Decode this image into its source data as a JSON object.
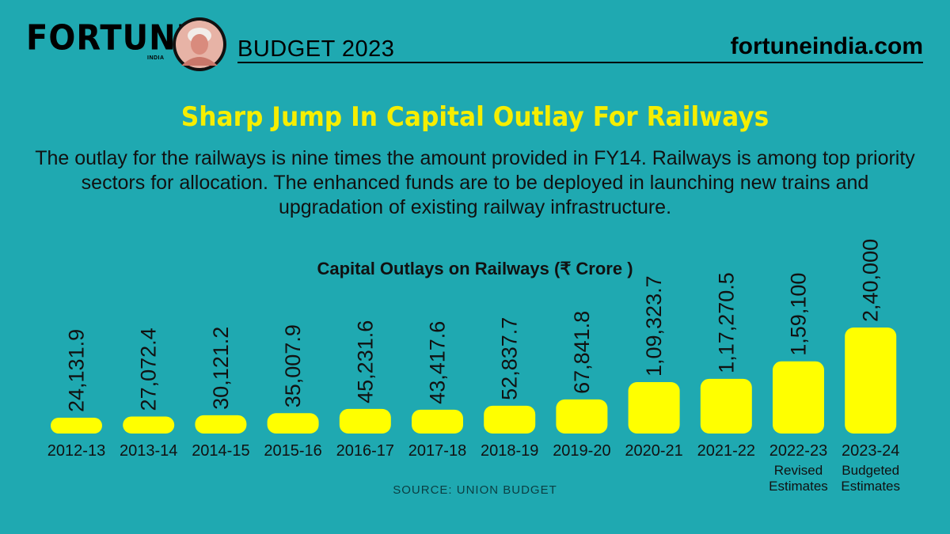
{
  "header": {
    "brand": "FORTUNE",
    "brand_sub": "INDIA",
    "section": "BUDGET 2023",
    "site": "fortuneindia.com"
  },
  "headline": "Sharp Jump In Capital Outlay For Railways",
  "description": "The outlay for the railways is nine times the amount provided in FY14. Railways is among top priority sectors for allocation. The enhanced funds are to be deployed in launching new trains and upgradation of existing railway infrastructure.",
  "source": "SOURCE: UNION BUDGET",
  "colors": {
    "background": "#1fa9b1",
    "bar": "#ffff00",
    "headline": "#f6ee00"
  },
  "chart_data": {
    "type": "bar",
    "title": "Capital Outlays on Railways (₹  Crore )",
    "xlabel": "",
    "ylabel": "",
    "categories": [
      "2012-13",
      "2013-14",
      "2014-15",
      "2015-16",
      "2016-17",
      "2017-18",
      "2018-19",
      "2019-20",
      "2020-21",
      "2021-22",
      "2022-23",
      "2023-24"
    ],
    "category_notes": [
      "",
      "",
      "",
      "",
      "",
      "",
      "",
      "",
      "",
      "",
      "Revised Estimates",
      "Budgeted Estimates"
    ],
    "values": [
      24131.9,
      27072.4,
      30121.2,
      35007.9,
      45231.6,
      43417.6,
      52837.7,
      67841.8,
      109323.7,
      117270.5,
      159100,
      240000
    ],
    "value_labels": [
      "24,131.9",
      "27,072.4",
      "30,121.2",
      "35,007.9",
      "45,231.6",
      "43,417.6",
      "52,837.7",
      "67,841.8",
      "1,09,323.7",
      "1,17,270.5",
      "1,59,100",
      "2,40,000"
    ],
    "grid": false,
    "legend": "none"
  }
}
